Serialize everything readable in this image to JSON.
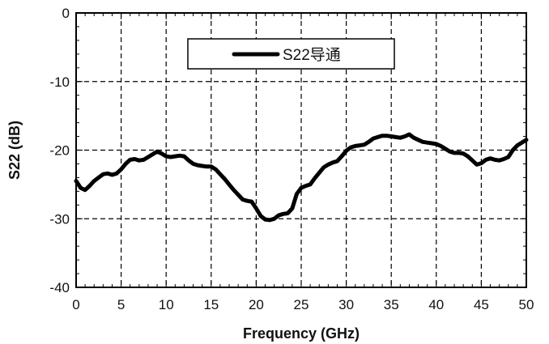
{
  "chart_data": {
    "type": "line",
    "title": "",
    "xlabel": "Frequency (GHz)",
    "ylabel": "S22 (dB)",
    "xlim": [
      0,
      50
    ],
    "ylim": [
      -40,
      0
    ],
    "xticks": [
      0,
      5,
      10,
      15,
      20,
      25,
      30,
      35,
      40,
      45,
      50
    ],
    "yticks": [
      0,
      -10,
      -20,
      -30,
      -40
    ],
    "grid": true,
    "grid_style": "dashed",
    "legend_position": "top-center",
    "series": [
      {
        "name": "S22导通",
        "color": "#000000",
        "x": [
          0,
          0.5,
          1,
          1.5,
          2,
          2.5,
          3,
          3.5,
          4,
          4.5,
          5,
          5.5,
          6,
          6.5,
          7,
          7.5,
          8,
          8.5,
          9,
          9.5,
          10,
          10.5,
          11,
          11.5,
          12,
          12.5,
          13,
          13.5,
          14,
          14.5,
          15,
          15.5,
          16,
          16.5,
          17,
          17.5,
          18,
          18.5,
          19,
          19.5,
          20,
          20.5,
          21,
          21.5,
          22,
          22.5,
          23,
          23.5,
          24,
          24.5,
          25,
          25.5,
          26,
          26.5,
          27,
          27.5,
          28,
          28.5,
          29,
          29.5,
          30,
          30.5,
          31,
          31.5,
          32,
          32.5,
          33,
          33.5,
          34,
          34.5,
          35,
          35.5,
          36,
          36.5,
          37,
          37.5,
          38,
          38.5,
          39,
          39.5,
          40,
          40.5,
          41,
          41.5,
          42,
          42.5,
          43,
          43.5,
          44,
          44.5,
          45,
          45.5,
          46,
          46.5,
          47,
          47.5,
          48,
          48.5,
          49,
          49.5,
          50
        ],
        "y": [
          -24.5,
          -25.5,
          -25.8,
          -25.2,
          -24.5,
          -24,
          -23.5,
          -23.4,
          -23.6,
          -23.4,
          -22.8,
          -22,
          -21.4,
          -21.3,
          -21.5,
          -21.4,
          -21,
          -20.6,
          -20.2,
          -20.5,
          -20.9,
          -21,
          -20.9,
          -20.8,
          -20.9,
          -21.5,
          -22,
          -22.2,
          -22.3,
          -22.4,
          -22.4,
          -22.8,
          -23.5,
          -24.2,
          -25,
          -25.8,
          -26.5,
          -27.2,
          -27.4,
          -27.5,
          -28.5,
          -29.6,
          -30.1,
          -30.2,
          -30,
          -29.5,
          -29.3,
          -29.2,
          -28.5,
          -26.4,
          -25.5,
          -25.2,
          -25,
          -24.1,
          -23.3,
          -22.5,
          -22.1,
          -21.8,
          -21.6,
          -20.9,
          -20.1,
          -19.6,
          -19.4,
          -19.3,
          -19.2,
          -18.8,
          -18.3,
          -18.1,
          -17.9,
          -17.9,
          -18,
          -18.1,
          -18.2,
          -18,
          -17.7,
          -18.2,
          -18.5,
          -18.8,
          -18.9,
          -19,
          -19.1,
          -19.4,
          -19.8,
          -20.2,
          -20.4,
          -20.4,
          -20.5,
          -20.9,
          -21.5,
          -22.1,
          -21.9,
          -21.4,
          -21.2,
          -21.4,
          -21.5,
          -21.3,
          -21,
          -20,
          -19.3,
          -18.9,
          -18.5
        ]
      }
    ]
  }
}
